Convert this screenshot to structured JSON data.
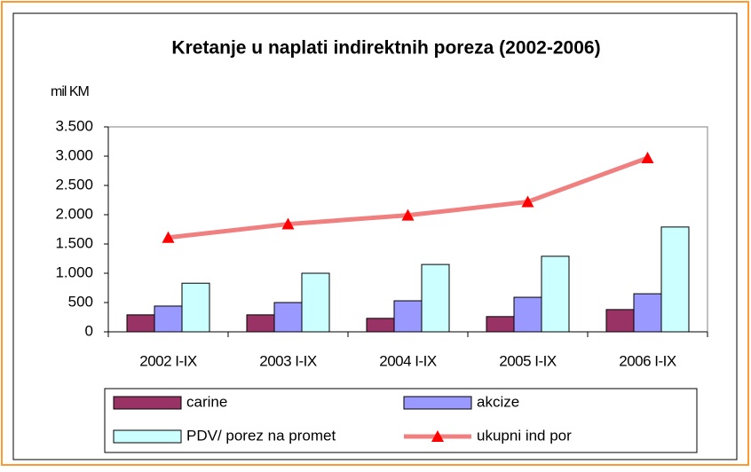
{
  "chart_data": {
    "type": "bar",
    "title": "Kretanje u naplati indirektnih poreza (2002-2006)",
    "y_label": "mil KM",
    "categories": [
      "2002 I-IX",
      "2003 I-IX",
      "2004 I-IX",
      "2005 I-IX",
      "2006 I-IX"
    ],
    "series": [
      {
        "name": "carine",
        "color": "#993366",
        "values": [
          290,
          290,
          230,
          260,
          380
        ]
      },
      {
        "name": "akcize",
        "color": "#9999ff",
        "values": [
          440,
          500,
          530,
          590,
          650
        ]
      },
      {
        "name": "PDV/ porez na promet",
        "color": "#ccffff",
        "values": [
          830,
          1000,
          1150,
          1290,
          1790
        ]
      },
      {
        "name": "ukupni ind por",
        "color": "#f08080",
        "marker_color": "#ff0000",
        "type": "line",
        "values": [
          1610,
          1840,
          1990,
          2220,
          2970
        ]
      }
    ],
    "ylim": [
      0,
      3500
    ],
    "yticks": [
      0,
      500,
      {
        "value": 1000,
        "label": "1.000"
      },
      {
        "value": 1500,
        "label": "1.500"
      },
      {
        "value": 2000,
        "label": "2.000"
      },
      {
        "value": 2500,
        "label": "2.500"
      },
      {
        "value": 3000,
        "label": "3.000"
      },
      {
        "value": 3500,
        "label": "3.500"
      }
    ],
    "grid": false,
    "legend": "bottom"
  }
}
